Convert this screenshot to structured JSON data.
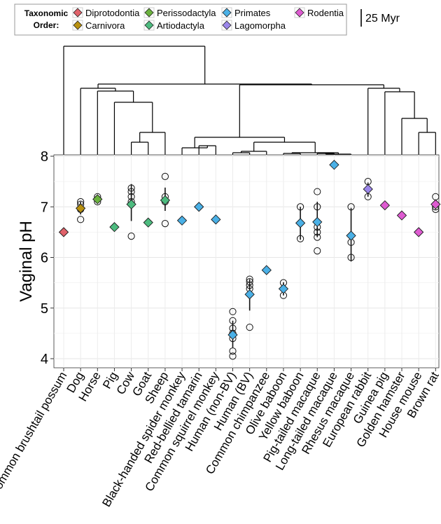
{
  "chart_data": {
    "type": "scatter",
    "ylabel": "Vaginal pH",
    "ylim": [
      3.85,
      8.05
    ],
    "yticks": [
      4,
      5,
      6,
      7,
      8
    ],
    "scale_bar_label": "25 Myr",
    "legend": {
      "title_line1": "Taxonomic",
      "title_line2": "Order:",
      "entries": [
        {
          "label": "Diprotodontia",
          "color": "#e0626a"
        },
        {
          "label": "Carnivora",
          "color": "#b8900f"
        },
        {
          "label": "Perissodactyla",
          "color": "#6bb23e"
        },
        {
          "label": "Artiodactyla",
          "color": "#4dbb7f"
        },
        {
          "label": "Primates",
          "color": "#4ab0e6"
        },
        {
          "label": "Lagomorpha",
          "color": "#9b86ea"
        },
        {
          "label": "Rodentia",
          "color": "#de5bd1"
        }
      ]
    },
    "species": [
      {
        "name": "Common brushtail possum",
        "order": "Diprotodontia",
        "mean": 6.5,
        "err": null,
        "points": []
      },
      {
        "name": "Dog",
        "order": "Carnivora",
        "mean": 6.97,
        "err": [
          6.85,
          7.1
        ],
        "points": [
          6.75,
          6.95,
          7.05,
          7.1
        ]
      },
      {
        "name": "Horse",
        "order": "Perissodactyla",
        "mean": 7.15,
        "err": [
          7.12,
          7.2
        ],
        "points": [
          7.1,
          7.15,
          7.2
        ]
      },
      {
        "name": "Pig",
        "order": "Artiodactyla",
        "mean": 6.6,
        "err": null,
        "points": []
      },
      {
        "name": "Cow",
        "order": "Artiodactyla",
        "mean": 7.05,
        "err": [
          6.72,
          7.45
        ],
        "points": [
          6.42,
          7.1,
          7.2,
          7.3,
          7.37
        ]
      },
      {
        "name": "Goat",
        "order": "Artiodactyla",
        "mean": 6.69,
        "err": null,
        "points": []
      },
      {
        "name": "Sheep",
        "order": "Artiodactyla",
        "mean": 7.13,
        "err": [
          6.92,
          7.38
        ],
        "points": [
          6.67,
          7.1,
          7.2,
          7.6
        ]
      },
      {
        "name": "Black-handed spider monkey",
        "order": "Primates",
        "mean": 6.73,
        "err": null,
        "points": []
      },
      {
        "name": "Red-bellied tamarin",
        "order": "Primates",
        "mean": 7.0,
        "err": null,
        "points": []
      },
      {
        "name": "Common squirrel monkey",
        "order": "Primates",
        "mean": 6.75,
        "err": null,
        "points": []
      },
      {
        "name": "Human (non-BV)",
        "order": "Primates",
        "mean": 4.47,
        "err": [
          4.22,
          4.75
        ],
        "points": [
          4.05,
          4.15,
          4.4,
          4.5,
          4.6,
          4.75,
          4.93
        ]
      },
      {
        "name": "Human (BV)",
        "order": "Primates",
        "mean": 5.27,
        "err": [
          4.95,
          5.57
        ],
        "points": [
          4.62,
          5.38,
          5.45,
          5.52,
          5.57
        ]
      },
      {
        "name": "Common chimpanzee",
        "order": "Primates",
        "mean": 5.75,
        "err": null,
        "points": []
      },
      {
        "name": "Olive baboon",
        "order": "Primates",
        "mean": 5.38,
        "err": [
          5.25,
          5.51
        ],
        "points": [
          5.25,
          5.5
        ]
      },
      {
        "name": "Yellow baboon",
        "order": "Primates",
        "mean": 6.68,
        "err": [
          6.35,
          7.0
        ],
        "points": [
          6.37,
          7.0
        ]
      },
      {
        "name": "Pig-tailed macaque",
        "order": "Primates",
        "mean": 6.7,
        "err": [
          6.4,
          7.1
        ],
        "points": [
          6.13,
          6.4,
          6.5,
          6.6,
          6.7,
          7.0,
          7.3
        ]
      },
      {
        "name": "Long-tailed macaque",
        "order": "Primates",
        "mean": 7.83,
        "err": null,
        "points": []
      },
      {
        "name": "Rhesus macaque",
        "order": "Primates",
        "mean": 6.43,
        "err": [
          5.92,
          6.98
        ],
        "points": [
          6.0,
          6.3,
          7.0
        ]
      },
      {
        "name": "European rabbit",
        "order": "Lagomorpha",
        "mean": 7.35,
        "err": [
          7.2,
          7.48
        ],
        "points": [
          7.2,
          7.5
        ]
      },
      {
        "name": "Guinea pig",
        "order": "Rodentia",
        "mean": 7.03,
        "err": null,
        "points": []
      },
      {
        "name": "Golden hamster",
        "order": "Rodentia",
        "mean": 6.83,
        "err": null,
        "points": []
      },
      {
        "name": "House mouse",
        "order": "Rodentia",
        "mean": 6.5,
        "err": null,
        "points": []
      },
      {
        "name": "Brown rat",
        "order": "Rodentia",
        "mean": 7.05,
        "err": [
          6.95,
          7.12
        ],
        "points": [
          6.95,
          7.0,
          7.2
        ]
      }
    ]
  }
}
